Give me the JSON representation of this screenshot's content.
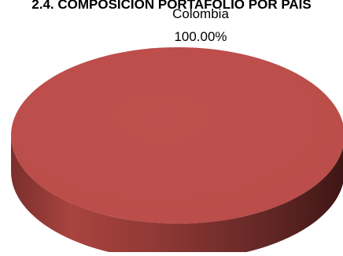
{
  "chart_data": {
    "type": "pie",
    "title": "2.4. COMPOSICIÓN PORTAFOLIO POR PAÍS",
    "slices": [
      {
        "label": "Colombia",
        "value": 100.0,
        "value_label": "100.00%",
        "color": "#C0504D"
      }
    ],
    "style": "3d"
  }
}
